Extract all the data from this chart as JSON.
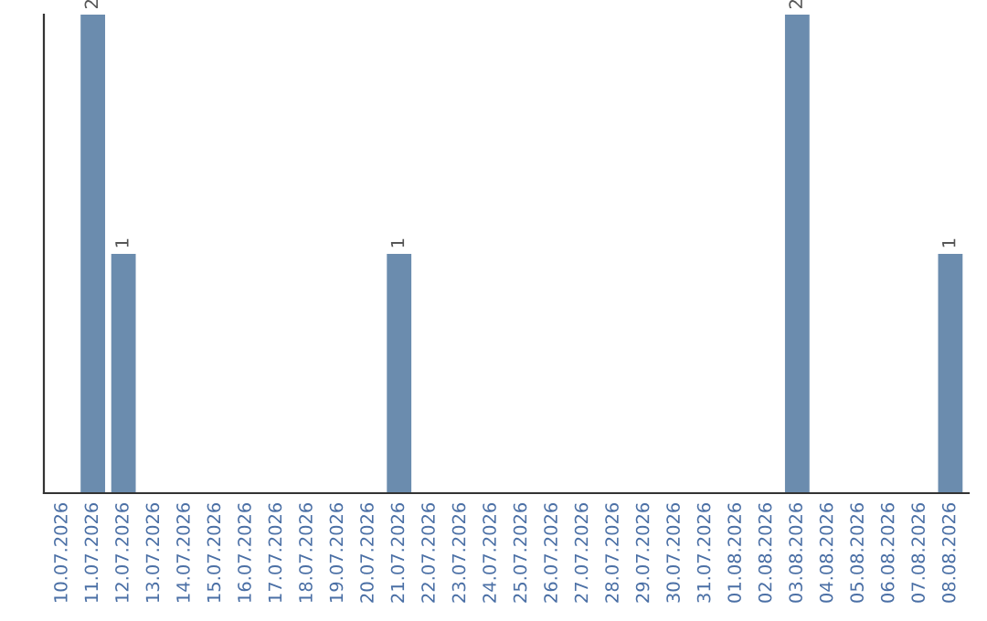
{
  "chart_data": {
    "type": "bar",
    "categories": [
      "10.07.2026",
      "11.07.2026",
      "12.07.2026",
      "13.07.2026",
      "14.07.2026",
      "15.07.2026",
      "16.07.2026",
      "17.07.2026",
      "18.07.2026",
      "19.07.2026",
      "20.07.2026",
      "21.07.2026",
      "22.07.2026",
      "23.07.2026",
      "24.07.2026",
      "25.07.2026",
      "26.07.2026",
      "27.07.2026",
      "28.07.2026",
      "29.07.2026",
      "30.07.2026",
      "31.07.2026",
      "01.08.2026",
      "02.08.2026",
      "03.08.2026",
      "04.08.2026",
      "05.08.2026",
      "06.08.2026",
      "07.08.2026",
      "08.08.2026"
    ],
    "values": [
      0,
      2,
      1,
      0,
      0,
      0,
      0,
      0,
      0,
      0,
      0,
      1,
      0,
      0,
      0,
      0,
      0,
      0,
      0,
      0,
      0,
      0,
      0,
      0,
      2,
      0,
      0,
      0,
      0,
      1
    ],
    "value_labels": [
      null,
      "2",
      "1",
      null,
      null,
      null,
      null,
      null,
      null,
      null,
      null,
      "1",
      null,
      null,
      null,
      null,
      null,
      null,
      null,
      null,
      null,
      null,
      null,
      null,
      "2",
      null,
      null,
      null,
      null,
      "1"
    ],
    "color": "#6b8cae",
    "ylim": [
      0,
      2
    ],
    "tick_labels": "x",
    "grid": false
  }
}
